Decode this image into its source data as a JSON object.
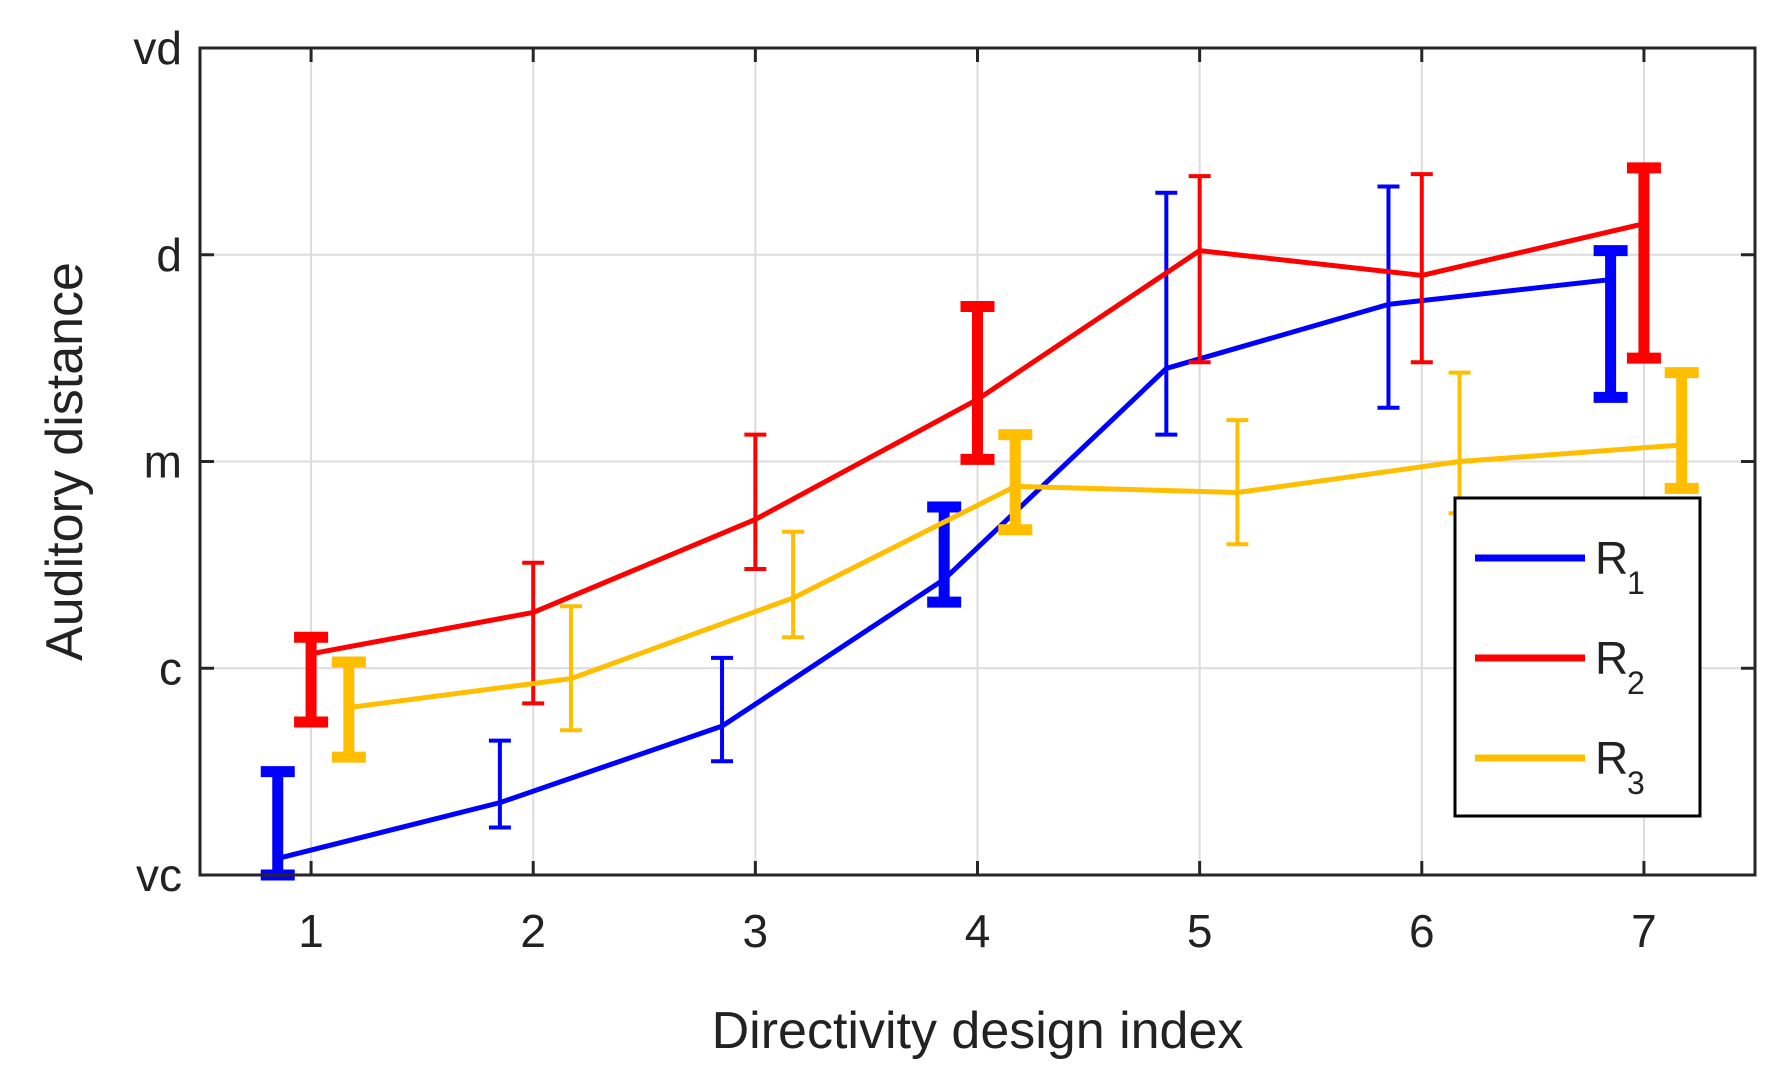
{
  "chart_data": {
    "type": "line",
    "title": "",
    "xlabel": "Directivity design index",
    "ylabel": "Auditory distance",
    "x": [
      1,
      2,
      3,
      4,
      5,
      6,
      7
    ],
    "xlim": [
      0.5,
      7.5
    ],
    "ylim": [
      1,
      5
    ],
    "yticks": [
      1,
      2,
      3,
      4,
      5
    ],
    "ytick_labels": [
      "vc",
      "c",
      "m",
      "d",
      "vd"
    ],
    "xtick_labels": [
      "1",
      "2",
      "3",
      "4",
      "5",
      "6",
      "7"
    ],
    "grid": true,
    "legend_position": "bottom-right",
    "series": [
      {
        "name": "R",
        "subscript": "1",
        "color": "#0000ff",
        "x_offset": -0.15,
        "values": [
          1.08,
          1.35,
          1.72,
          2.43,
          3.45,
          3.76,
          3.88
        ],
        "err_low": [
          1.0,
          1.23,
          1.55,
          2.32,
          3.13,
          3.26,
          3.31
        ],
        "err_high": [
          1.5,
          1.65,
          2.05,
          2.78,
          4.3,
          4.33,
          4.02
        ],
        "thick": [
          true,
          false,
          false,
          true,
          false,
          false,
          true
        ]
      },
      {
        "name": "R",
        "subscript": "2",
        "color": "#ff0000",
        "x_offset": 0.0,
        "values": [
          2.07,
          2.27,
          2.72,
          3.3,
          4.02,
          3.9,
          4.15
        ],
        "err_low": [
          1.74,
          1.83,
          2.48,
          3.01,
          3.48,
          3.48,
          3.5
        ],
        "err_high": [
          2.15,
          2.51,
          3.13,
          3.75,
          4.38,
          4.39,
          4.42
        ],
        "thick": [
          true,
          false,
          false,
          true,
          false,
          false,
          true
        ]
      },
      {
        "name": "R",
        "subscript": "3",
        "color": "#ffbf00",
        "x_offset": 0.17,
        "values": [
          1.81,
          1.95,
          2.34,
          2.88,
          2.85,
          3.0,
          3.08
        ],
        "err_low": [
          1.57,
          1.7,
          2.15,
          2.67,
          2.6,
          2.75,
          2.87
        ],
        "err_high": [
          2.03,
          2.3,
          2.66,
          3.13,
          3.2,
          3.43,
          3.43
        ],
        "thick": [
          true,
          false,
          false,
          true,
          false,
          false,
          true
        ]
      }
    ]
  }
}
